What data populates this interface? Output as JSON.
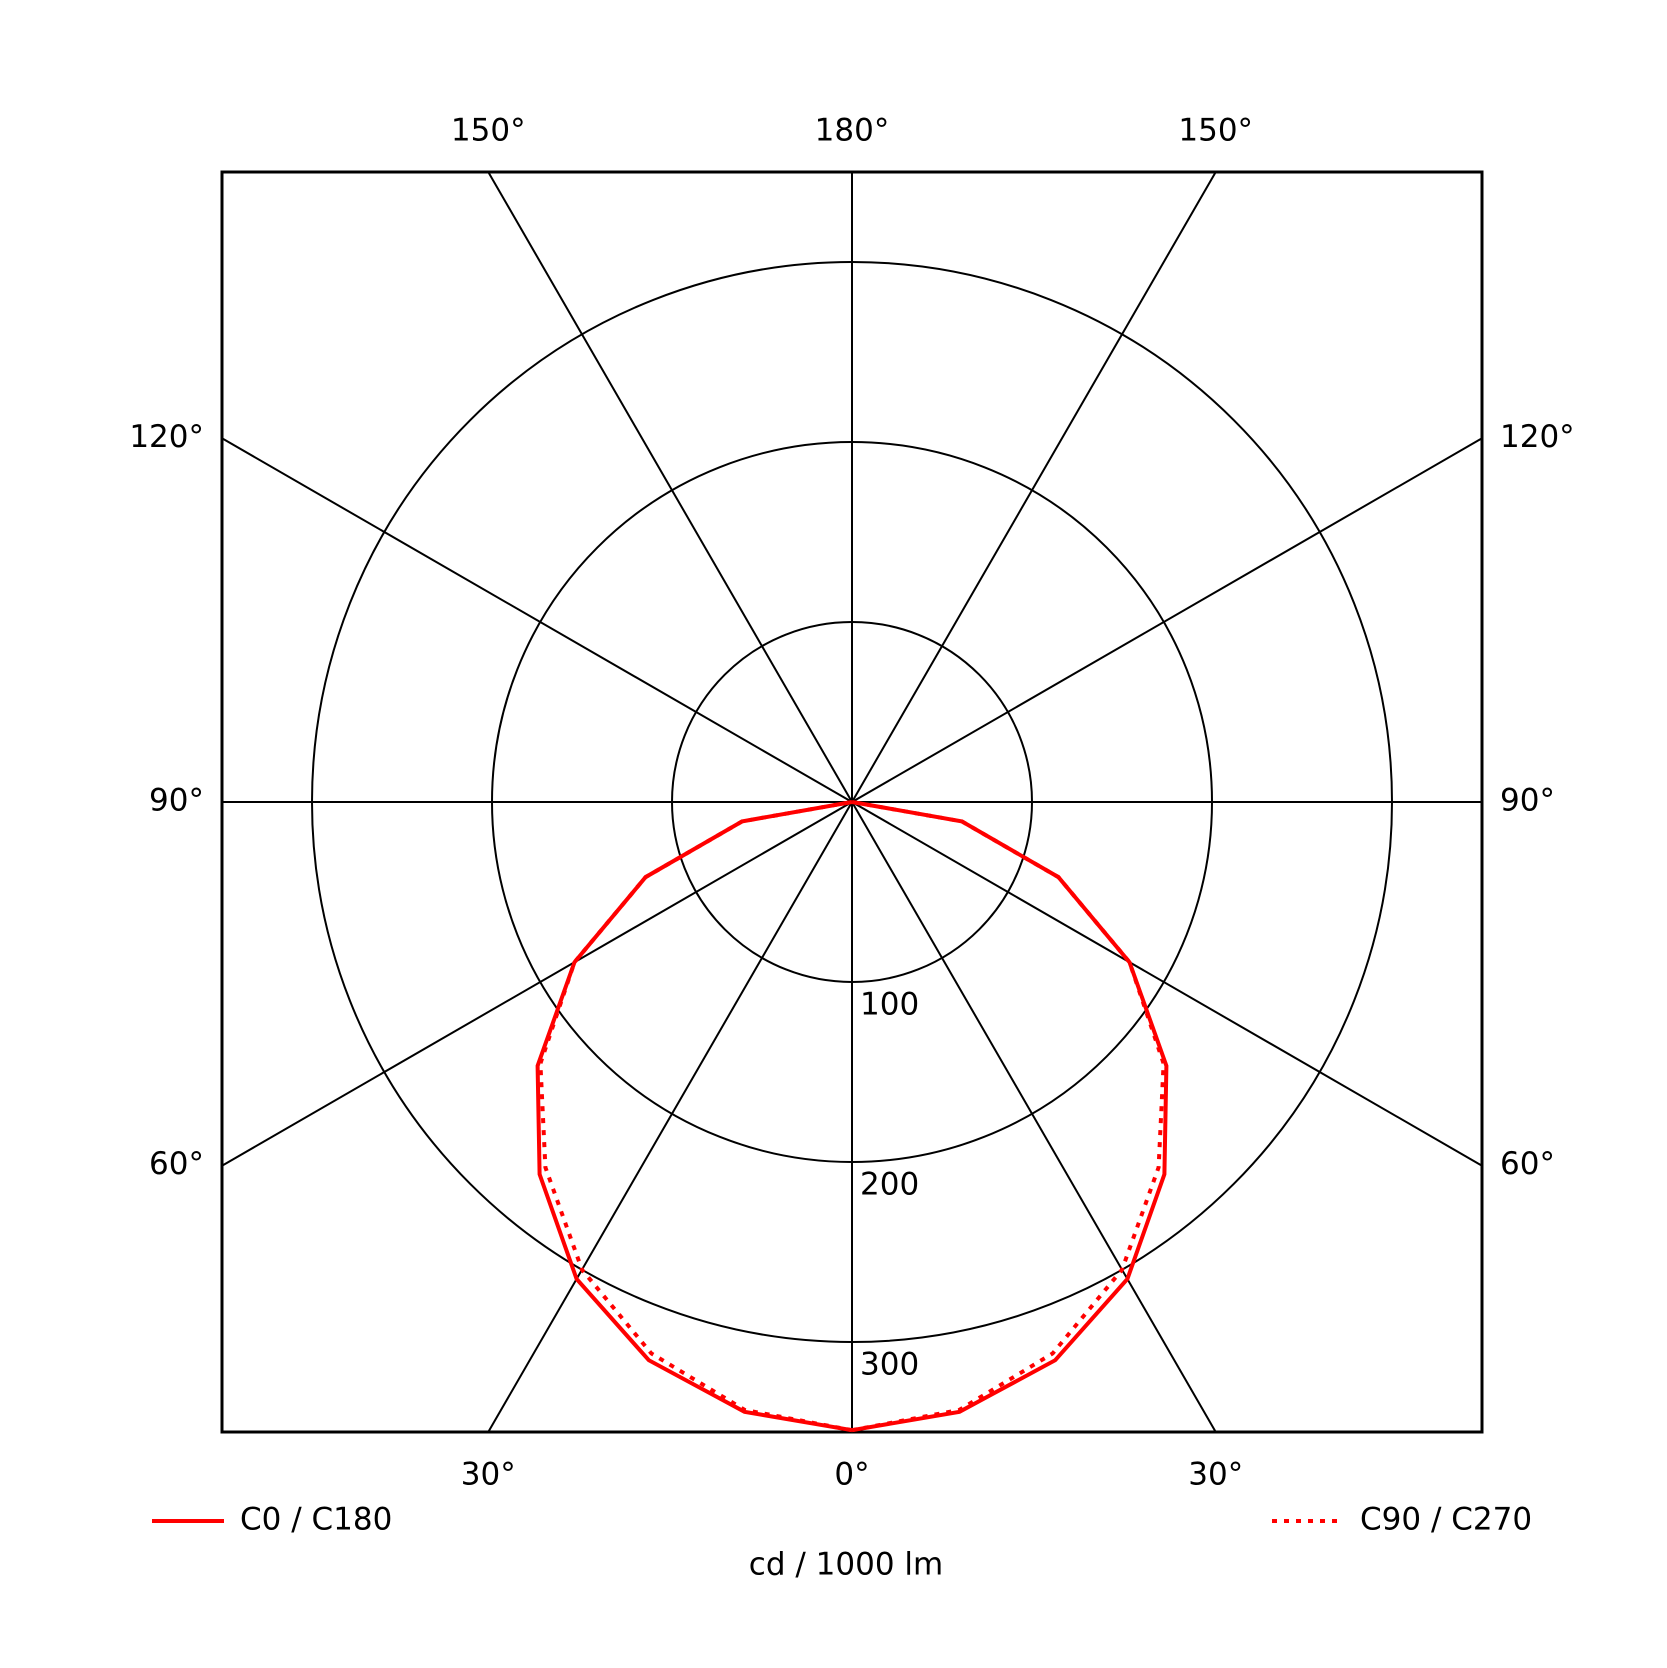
{
  "chart_data": {
    "type": "polar",
    "gamma": [
      0,
      10,
      20,
      30,
      40,
      50,
      60,
      70,
      80,
      90
    ],
    "series": [
      {
        "name": "C0 / C180",
        "color": "#ff0000",
        "dash": "solid",
        "values": [
          349,
          344,
          330,
          306,
          270,
          228,
          178,
          122,
          62,
          0
        ]
      },
      {
        "name": "C90 / C270",
        "color": "#ff0000",
        "dash": "dotted",
        "values": [
          349,
          343,
          326,
          300,
          265,
          226,
          178,
          122,
          62,
          0
        ]
      }
    ],
    "rlim": [
      0,
      350
    ],
    "rticks": [
      100,
      200,
      300
    ],
    "angle_ticks": [
      {
        "value": 0,
        "label": "0°"
      },
      {
        "value": 30,
        "label": "30°"
      },
      {
        "value": 60,
        "label": "60°"
      },
      {
        "value": 90,
        "label": "90°"
      },
      {
        "value": 120,
        "label": "120°"
      },
      {
        "value": 150,
        "label": "150°"
      },
      {
        "value": 180,
        "label": "180°"
      }
    ],
    "axis_label": "cd / 1000 lm"
  }
}
